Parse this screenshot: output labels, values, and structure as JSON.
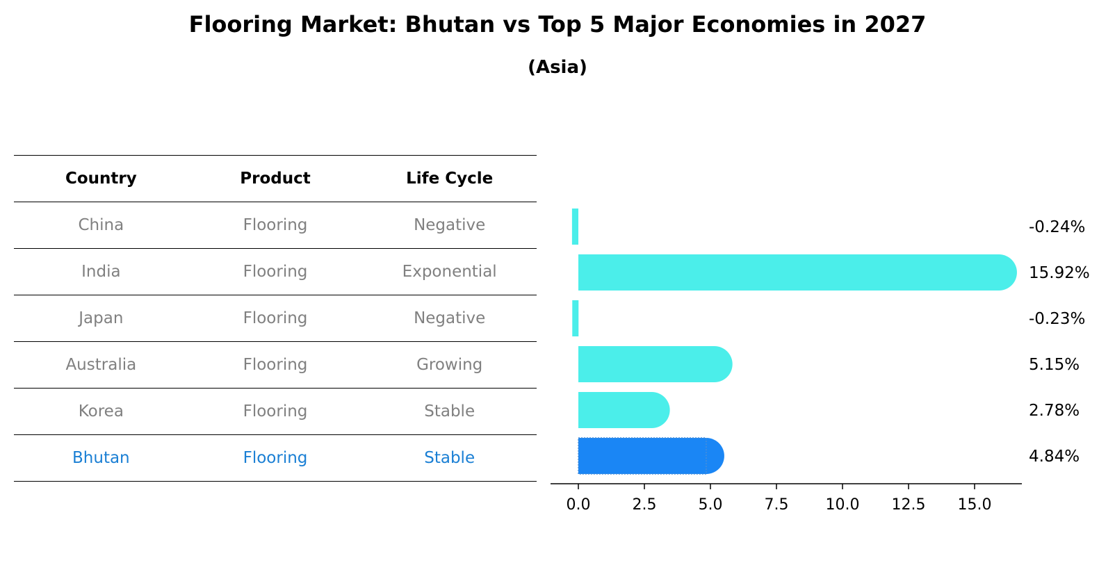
{
  "title": "Flooring Market: Bhutan vs Top 5 Major Economies in 2027",
  "subtitle": "(Asia)",
  "table": {
    "headers": [
      "Country",
      "Product",
      "Life Cycle"
    ],
    "rows": [
      {
        "country": "China",
        "product": "Flooring",
        "life_cycle": "Negative"
      },
      {
        "country": "India",
        "product": "Flooring",
        "life_cycle": "Exponential"
      },
      {
        "country": "Japan",
        "product": "Flooring",
        "life_cycle": "Negative"
      },
      {
        "country": "Australia",
        "product": "Flooring",
        "life_cycle": "Growing"
      },
      {
        "country": "Korea",
        "product": "Flooring",
        "life_cycle": "Stable"
      },
      {
        "country": "Bhutan",
        "product": "Flooring",
        "life_cycle": "Stable"
      }
    ]
  },
  "colors": {
    "bar": "#4beeea",
    "highlight_bar": "#1a86f5",
    "highlight_text": "#1a7fd4",
    "muted_text": "#808080"
  },
  "chart_data": {
    "type": "bar",
    "orientation": "horizontal",
    "categories": [
      "China",
      "India",
      "Japan",
      "Australia",
      "Korea",
      "Bhutan"
    ],
    "values": [
      -0.24,
      15.92,
      -0.23,
      5.15,
      2.78,
      4.84
    ],
    "value_labels": [
      "-0.24%",
      "15.92%",
      "-0.23%",
      "5.15%",
      "2.78%",
      "4.84%"
    ],
    "highlight": "Bhutan",
    "xlim": [
      -1.05,
      16.8
    ],
    "xticks": [
      0.0,
      2.5,
      5.0,
      7.5,
      10.0,
      12.5,
      15.0
    ],
    "xtick_labels": [
      "0.0",
      "2.5",
      "5.0",
      "7.5",
      "10.0",
      "12.5",
      "15.0"
    ],
    "xlabel": "",
    "ylabel": ""
  }
}
